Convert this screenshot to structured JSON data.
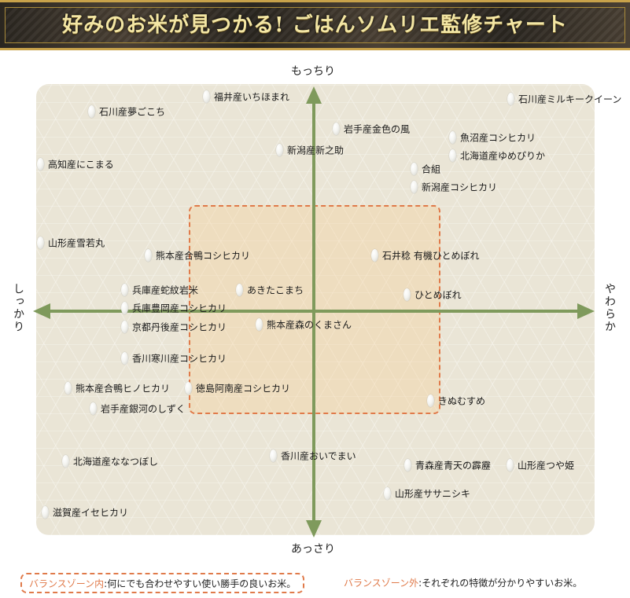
{
  "title": "好みのお米が見つかる! ごはんソムリエ監修チャート",
  "axes": {
    "top": "もっちり",
    "bottom": "あっさり",
    "left": "しっかり",
    "right": "やわらか"
  },
  "rice_varieties": [
    {
      "name": "福井産いちほまれ"
    },
    {
      "name": "石川産ミルキークイーン"
    },
    {
      "name": "石川産夢ごこち"
    },
    {
      "name": "岩手産金色の風"
    },
    {
      "name": "魚沼産コシヒカリ"
    },
    {
      "name": "新潟産新之助"
    },
    {
      "name": "北海道産ゆめぴりか"
    },
    {
      "name": "高知産にこまる"
    },
    {
      "name": "合組"
    },
    {
      "name": "新潟産コシヒカリ"
    },
    {
      "name": "山形産雪若丸"
    },
    {
      "name": "熊本産合鴨コシヒカリ"
    },
    {
      "name": "石井稔 有機ひとめぼれ"
    },
    {
      "name": "兵庫産蛇紋岩米"
    },
    {
      "name": "あきたこまち"
    },
    {
      "name": "ひとめぼれ"
    },
    {
      "name": "兵庫豊岡産コシヒカリ"
    },
    {
      "name": "京都丹後産コシヒカリ"
    },
    {
      "name": "熊本産森のくまさん"
    },
    {
      "name": "香川寒川産コシヒカリ"
    },
    {
      "name": "熊本産合鴨ヒノヒカリ"
    },
    {
      "name": "徳島阿南産コシヒカリ"
    },
    {
      "name": "きぬむすめ"
    },
    {
      "name": "岩手産銀河のしずく"
    },
    {
      "name": "香川産おいでまい"
    },
    {
      "name": "北海道産ななつぼし"
    },
    {
      "name": "青森産青天の霹靂"
    },
    {
      "name": "山形産つや姫"
    },
    {
      "name": "山形産ササニシキ"
    },
    {
      "name": "滋賀産イセヒカリ"
    }
  ],
  "legend": {
    "inside_key": "バランスゾーン内",
    "inside_text": ":何にでも合わせやすい使い勝手の良いお米。",
    "outside_key": "バランスゾーン外",
    "outside_text": ":それぞれの特徴が分かりやすいお米。"
  },
  "colors": {
    "axis": "#7f9a5c",
    "zone_border": "#e07a4a",
    "legend_key": "#e07a4a"
  }
}
